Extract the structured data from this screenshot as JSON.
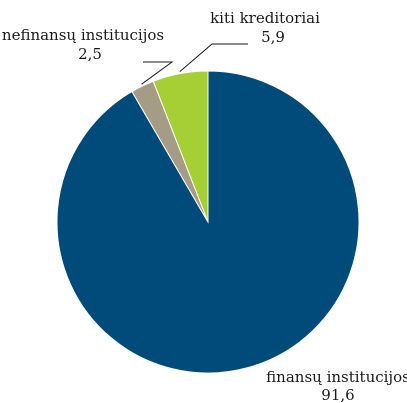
{
  "chart_data": {
    "type": "pie",
    "slices": [
      {
        "label": "finansų institucijos",
        "value_label": "91,6",
        "value": 91.6,
        "color": "#004b79"
      },
      {
        "label": "nefinansų institucijos",
        "value_label": "2,5",
        "value": 2.5,
        "color": "#a59c86"
      },
      {
        "label": "kiti kreditoriai",
        "value_label": "5,9",
        "value": 5.9,
        "color": "#a6cf35"
      }
    ]
  }
}
